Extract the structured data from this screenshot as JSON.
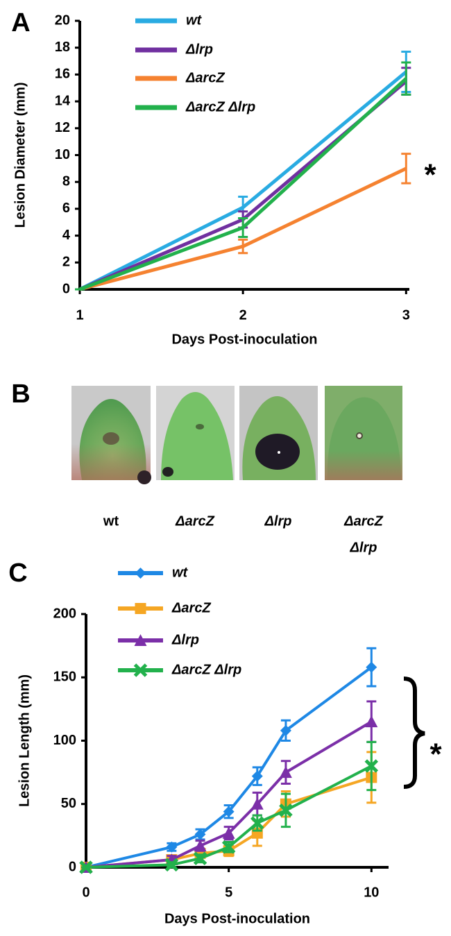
{
  "chart_data": [
    {
      "type": "line",
      "panel_label": "A",
      "x_label": "Days Post-inoculation",
      "y_label": "Lesion Diameter (mm)",
      "x": [
        1,
        2,
        3
      ],
      "xlim": [
        1,
        3.02
      ],
      "xticks": [
        1,
        2,
        3
      ],
      "ylim": [
        0,
        20
      ],
      "yticks": [
        0,
        2,
        4,
        6,
        8,
        10,
        12,
        14,
        16,
        18,
        20
      ],
      "series": [
        {
          "name": "wt",
          "color": "#29abe2",
          "values": [
            0,
            6.1,
            16.2
          ],
          "errors": [
            0,
            0.8,
            1.5
          ]
        },
        {
          "name": "Δlrp",
          "color": "#7030a0",
          "values": [
            0,
            5.2,
            15.5
          ],
          "errors": [
            0,
            0.6,
            1.0
          ]
        },
        {
          "name": "ΔarcZ",
          "color": "#f58230",
          "values": [
            0,
            3.2,
            9.0
          ],
          "errors": [
            0,
            0.5,
            1.1
          ]
        },
        {
          "name": "ΔarcZ Δlrp",
          "color": "#22b14c",
          "values": [
            0,
            4.6,
            15.7
          ],
          "errors": [
            0,
            0.7,
            1.2
          ]
        }
      ],
      "annotation": "*"
    },
    {
      "type": "line",
      "panel_label": "C",
      "x_label": "Days Post-inoculation",
      "y_label": "Lesion Length (mm)",
      "x": [
        0,
        3,
        4,
        5,
        6,
        7,
        10
      ],
      "xlim": [
        0,
        10.6
      ],
      "xticks": [
        0,
        5,
        10
      ],
      "ylim": [
        0,
        200
      ],
      "yticks": [
        0,
        50,
        100,
        150,
        200
      ],
      "series": [
        {
          "name": "wt",
          "color": "#1e88e5",
          "marker": "diamond",
          "values": [
            0,
            16,
            26,
            44,
            72,
            108,
            158
          ],
          "errors": [
            0,
            3,
            4,
            5,
            7,
            8,
            15
          ]
        },
        {
          "name": "ΔarcZ",
          "color": "#f5a623",
          "marker": "square",
          "values": [
            0,
            6,
            11,
            13,
            27,
            50,
            71
          ],
          "errors": [
            0,
            2,
            3,
            4,
            10,
            10,
            20
          ]
        },
        {
          "name": "Δlrp",
          "color": "#7b2fa8",
          "marker": "triangle",
          "values": [
            0,
            6,
            17,
            27,
            50,
            75,
            115
          ],
          "errors": [
            0,
            3,
            4,
            5,
            9,
            9,
            16
          ]
        },
        {
          "name": "ΔarcZ Δlrp",
          "color": "#22b14c",
          "marker": "x",
          "values": [
            0,
            2,
            7,
            16,
            35,
            45,
            80
          ],
          "errors": [
            0,
            2,
            3,
            4,
            6,
            13,
            19
          ]
        }
      ],
      "annotation": "*"
    }
  ],
  "panel_b": {
    "panel_label": "B",
    "labels": [
      [
        "wt"
      ],
      [
        "ΔarcZ"
      ],
      [
        "Δlrp"
      ],
      [
        "ΔarcZ",
        "Δlrp"
      ]
    ]
  }
}
